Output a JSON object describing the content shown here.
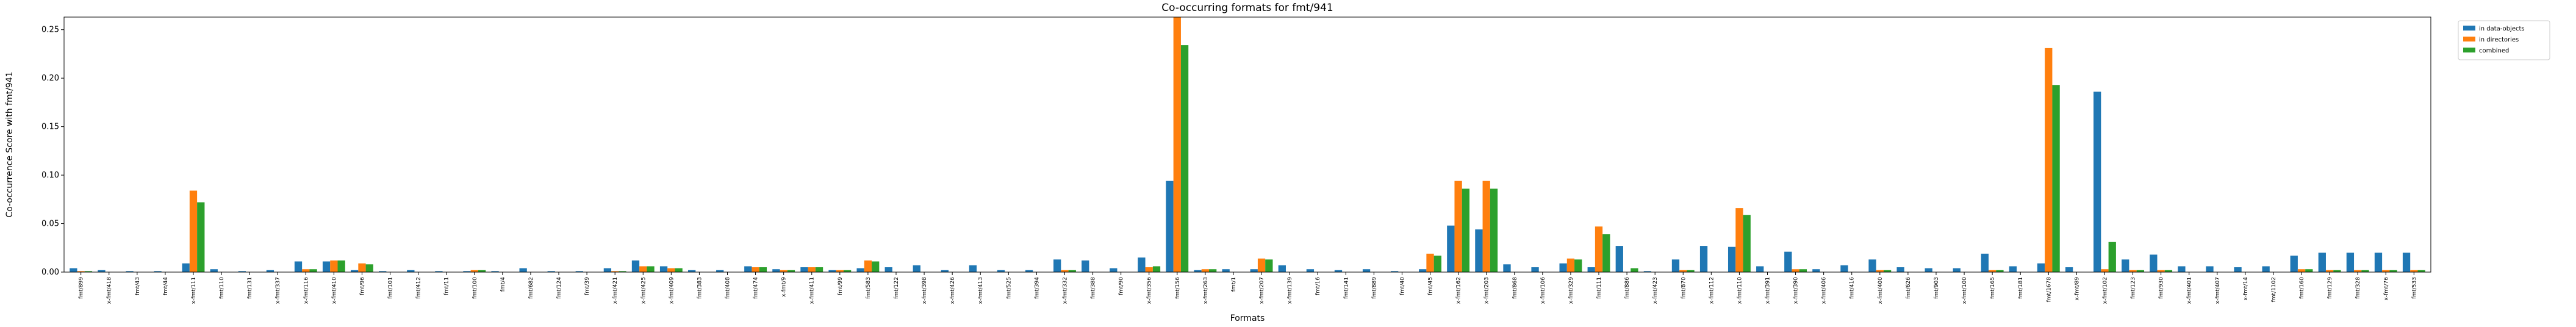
{
  "chart_data": {
    "type": "bar",
    "title": "Co-occurring formats for fmt/941",
    "x_label": "Formats",
    "y_label": "Co-occurrence Score with fmt/941",
    "categories": [
      "fmt/899",
      "x-fmt/418",
      "fmt/43",
      "fmt/44",
      "x-fmt/111",
      "fmt/110",
      "fmt/131",
      "x-fmt/337",
      "x-fmt/116",
      "x-fmt/410",
      "fmt/96",
      "fmt/101",
      "fmt/412",
      "fmt/11",
      "fmt/100",
      "fmt/4",
      "fmt/682",
      "fmt/124",
      "fmt/39",
      "x-fmt/421",
      "x-fmt/425",
      "x-fmt/409",
      "fmt/383",
      "fmt/408",
      "fmt/474",
      "x-fmt/9",
      "x-fmt/411",
      "fmt/99",
      "fmt/583",
      "fmt/122",
      "x-fmt/398",
      "x-fmt/426",
      "x-fmt/413",
      "fmt/525",
      "fmt/394",
      "x-fmt/332",
      "fmt/388",
      "fmt/90",
      "x-fmt/356",
      "fmt/156",
      "x-fmt/263",
      "fmt/1",
      "x-fmt/207",
      "x-fmt/139",
      "fmt/16",
      "fmt/141",
      "fmt/889",
      "fmt/40",
      "fmt/45",
      "x-fmt/162",
      "x-fmt/203",
      "fmt/868",
      "x-fmt/106",
      "x-fmt/329",
      "fmt/111",
      "fmt/886",
      "x-fmt/423",
      "fmt/870",
      "x-fmt/112",
      "x-fmt/110",
      "x-fmt/391",
      "x-fmt/390",
      "x-fmt/406",
      "fmt/416",
      "x-fmt/400",
      "fmt/626",
      "fmt/903",
      "x-fmt/100",
      "fmt/165",
      "fmt/181",
      "fmt/1678",
      "x-fmt/89",
      "x-fmt/102",
      "fmt/123",
      "fmt/930",
      "x-fmt/401",
      "x-fmt/407",
      "x-fmt/14",
      "fmt/1102",
      "fmt/160",
      "fmt/129",
      "fmt/328",
      "x-fmt/76",
      "fmt/533"
    ],
    "series": [
      {
        "name": "in data-objects",
        "color": "#1f77b4",
        "values": [
          0.004,
          0.002,
          0.001,
          0.001,
          0.009,
          0.003,
          0.001,
          0.002,
          0.011,
          0.011,
          0.002,
          0.001,
          0.002,
          0.001,
          0.001,
          0.001,
          0.004,
          0.001,
          0.001,
          0.004,
          0.012,
          0.006,
          0.002,
          0.002,
          0.006,
          0.003,
          0.005,
          0.002,
          0.004,
          0.005,
          0.007,
          0.002,
          0.007,
          0.002,
          0.002,
          0.013,
          0.012,
          0.004,
          0.015,
          0.094,
          0.002,
          0.003,
          0.003,
          0.007,
          0.003,
          0.002,
          0.003,
          0.001,
          0.003,
          0.048,
          0.044,
          0.008,
          0.005,
          0.009,
          0.005,
          0.027,
          0.001,
          0.013,
          0.027,
          0.026,
          0.006,
          0.021,
          0.003,
          0.007,
          0.013,
          0.005,
          0.004,
          0.004,
          0.019,
          0.006,
          0.009,
          0.005,
          0.186,
          0.013,
          0.018,
          0.006,
          0.006,
          0.005,
          0.006,
          0.017,
          0.02,
          0.02,
          0.02,
          0.02
        ]
      },
      {
        "name": "in directories",
        "color": "#ff7f0e",
        "values": [
          0.001,
          0,
          0,
          0,
          0.084,
          0,
          0,
          0,
          0.003,
          0.012,
          0.009,
          0,
          0,
          0,
          0.002,
          0,
          0,
          0,
          0,
          0.001,
          0.006,
          0.004,
          0,
          0,
          0.005,
          0.002,
          0.005,
          0.002,
          0.012,
          0,
          0,
          0,
          0,
          0,
          0,
          0.002,
          0,
          0,
          0.005,
          0.263,
          0.003,
          0,
          0.014,
          0,
          0,
          0,
          0,
          0,
          0.019,
          0.094,
          0.094,
          0,
          0,
          0.014,
          0.047,
          0,
          0,
          0.002,
          0,
          0.066,
          0,
          0.003,
          0,
          0,
          0.002,
          0,
          0,
          0,
          0.002,
          0,
          0.231,
          0,
          0.003,
          0.002,
          0.002,
          0,
          0,
          0,
          0,
          0.003,
          0.002,
          0.002,
          0.002,
          0.002
        ]
      },
      {
        "name": "combined",
        "color": "#2ca02c",
        "values": [
          0.001,
          0,
          0,
          0,
          0.072,
          0,
          0,
          0,
          0.003,
          0.012,
          0.008,
          0,
          0,
          0,
          0.002,
          0,
          0,
          0,
          0,
          0.001,
          0.006,
          0.004,
          0,
          0,
          0.005,
          0.002,
          0.005,
          0.002,
          0.011,
          0,
          0,
          0,
          0,
          0,
          0,
          0.002,
          0,
          0,
          0.006,
          0.234,
          0.003,
          0,
          0.013,
          0,
          0,
          0,
          0,
          0,
          0.017,
          0.086,
          0.086,
          0,
          0,
          0.013,
          0.039,
          0.004,
          0,
          0.002,
          0,
          0.059,
          0,
          0.003,
          0,
          0,
          0.002,
          0,
          0,
          0,
          0.002,
          0,
          0.193,
          0,
          0.031,
          0.002,
          0.002,
          0,
          0,
          0,
          0,
          0.003,
          0.002,
          0.002,
          0.002,
          0.002
        ]
      }
    ],
    "ylim": [
      0,
      0.263
    ],
    "yticks": [
      {
        "value": 0,
        "label": "0.00"
      },
      {
        "value": 0.05,
        "label": "0.05"
      },
      {
        "value": 0.1,
        "label": "0.10"
      },
      {
        "value": 0.15,
        "label": "0.15"
      },
      {
        "value": 0.2,
        "label": "0.20"
      },
      {
        "value": 0.25,
        "label": "0.25"
      }
    ],
    "legend": "outside-upper-right"
  }
}
